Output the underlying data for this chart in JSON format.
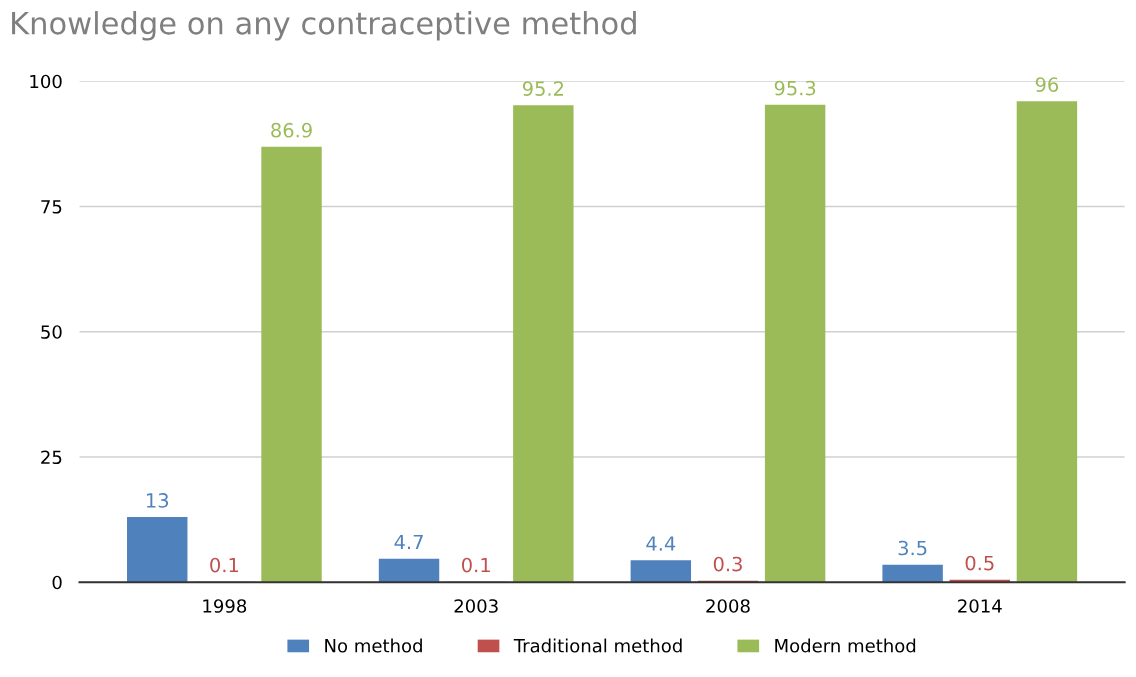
{
  "chart_data": {
    "type": "bar",
    "title": "Knowledge on any contraceptive method",
    "categories": [
      "1998",
      "2003",
      "2008",
      "2014"
    ],
    "series": [
      {
        "name": "No method",
        "color": "#4f81bd",
        "values": [
          13,
          4.7,
          4.4,
          3.5
        ]
      },
      {
        "name": "Traditional method",
        "color": "#c0504d",
        "values": [
          0.1,
          0.1,
          0.3,
          0.5
        ]
      },
      {
        "name": "Modern method",
        "color": "#9bbb59",
        "values": [
          86.9,
          95.2,
          95.3,
          96
        ]
      }
    ],
    "ylim": [
      0,
      100
    ],
    "yticks": [
      0,
      25,
      50,
      75,
      100
    ],
    "grid": "y",
    "legend": "bottom",
    "data_labels": true
  }
}
